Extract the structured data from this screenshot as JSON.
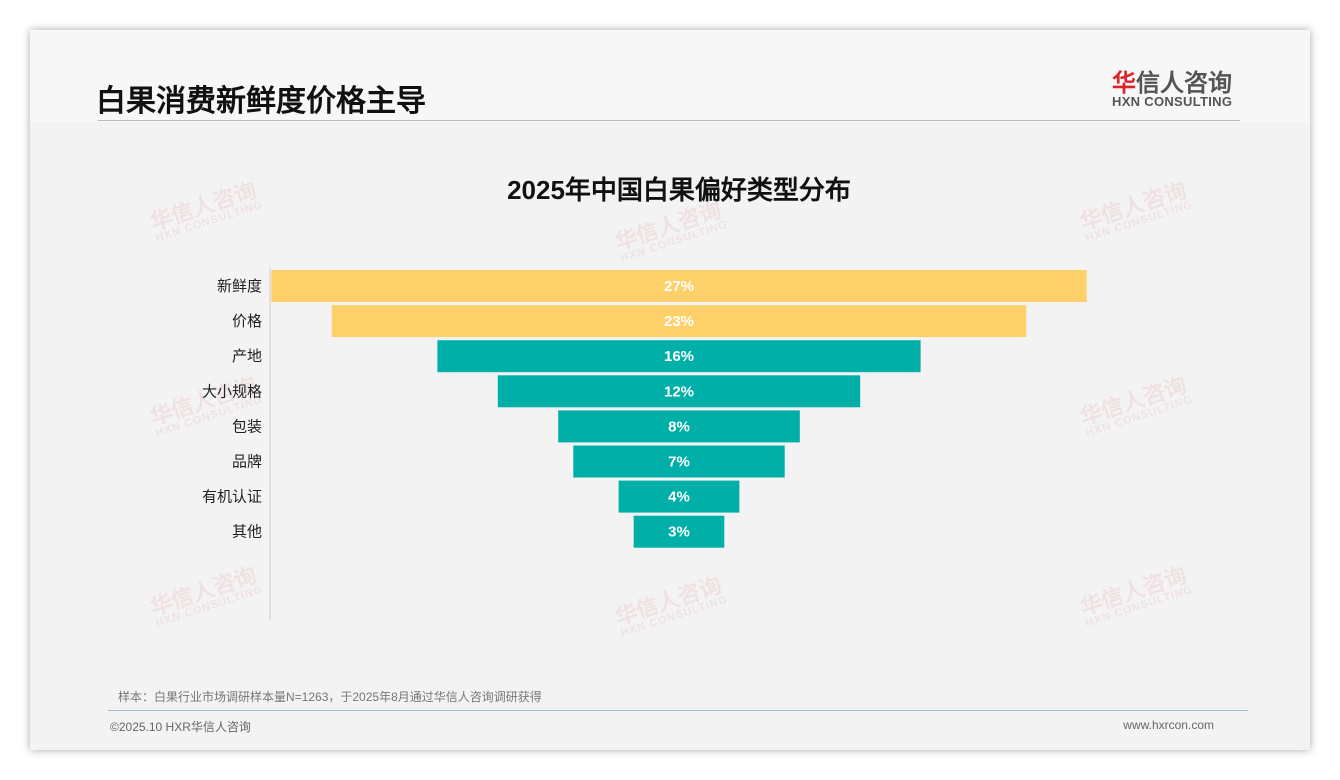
{
  "header": {
    "title": "白果消费新鲜度价格主导",
    "logo_cn_red": "华",
    "logo_cn_rest": "信人咨询",
    "logo_en": "HXN CONSULTING"
  },
  "watermark": {
    "cn": "华信人咨询",
    "en": "HXN CONSULTING"
  },
  "chart_data": {
    "type": "bar",
    "orientation": "horizontal-funnel",
    "title": "2025年中国白果偏好类型分布",
    "categories": [
      "新鲜度",
      "价格",
      "产地",
      "大小规格",
      "包装",
      "品牌",
      "有机认证",
      "其他"
    ],
    "values": [
      27,
      23,
      16,
      12,
      8,
      7,
      4,
      3
    ],
    "labels": [
      "27%",
      "23%",
      "16%",
      "12%",
      "8%",
      "7%",
      "4%",
      "3%"
    ],
    "colors": [
      "#fed06a",
      "#fed06a",
      "#00b0a8",
      "#00b0a8",
      "#00b0a8",
      "#00b0a8",
      "#00b0a8",
      "#00b0a8"
    ],
    "unit": "%"
  },
  "footer": {
    "note": "样本：白果行业市场调研样本量N=1263，于2025年8月通过华信人咨询调研获得",
    "copyright": "©2025.10 HXR华信人咨询",
    "site": "www.hxrcon.com"
  }
}
